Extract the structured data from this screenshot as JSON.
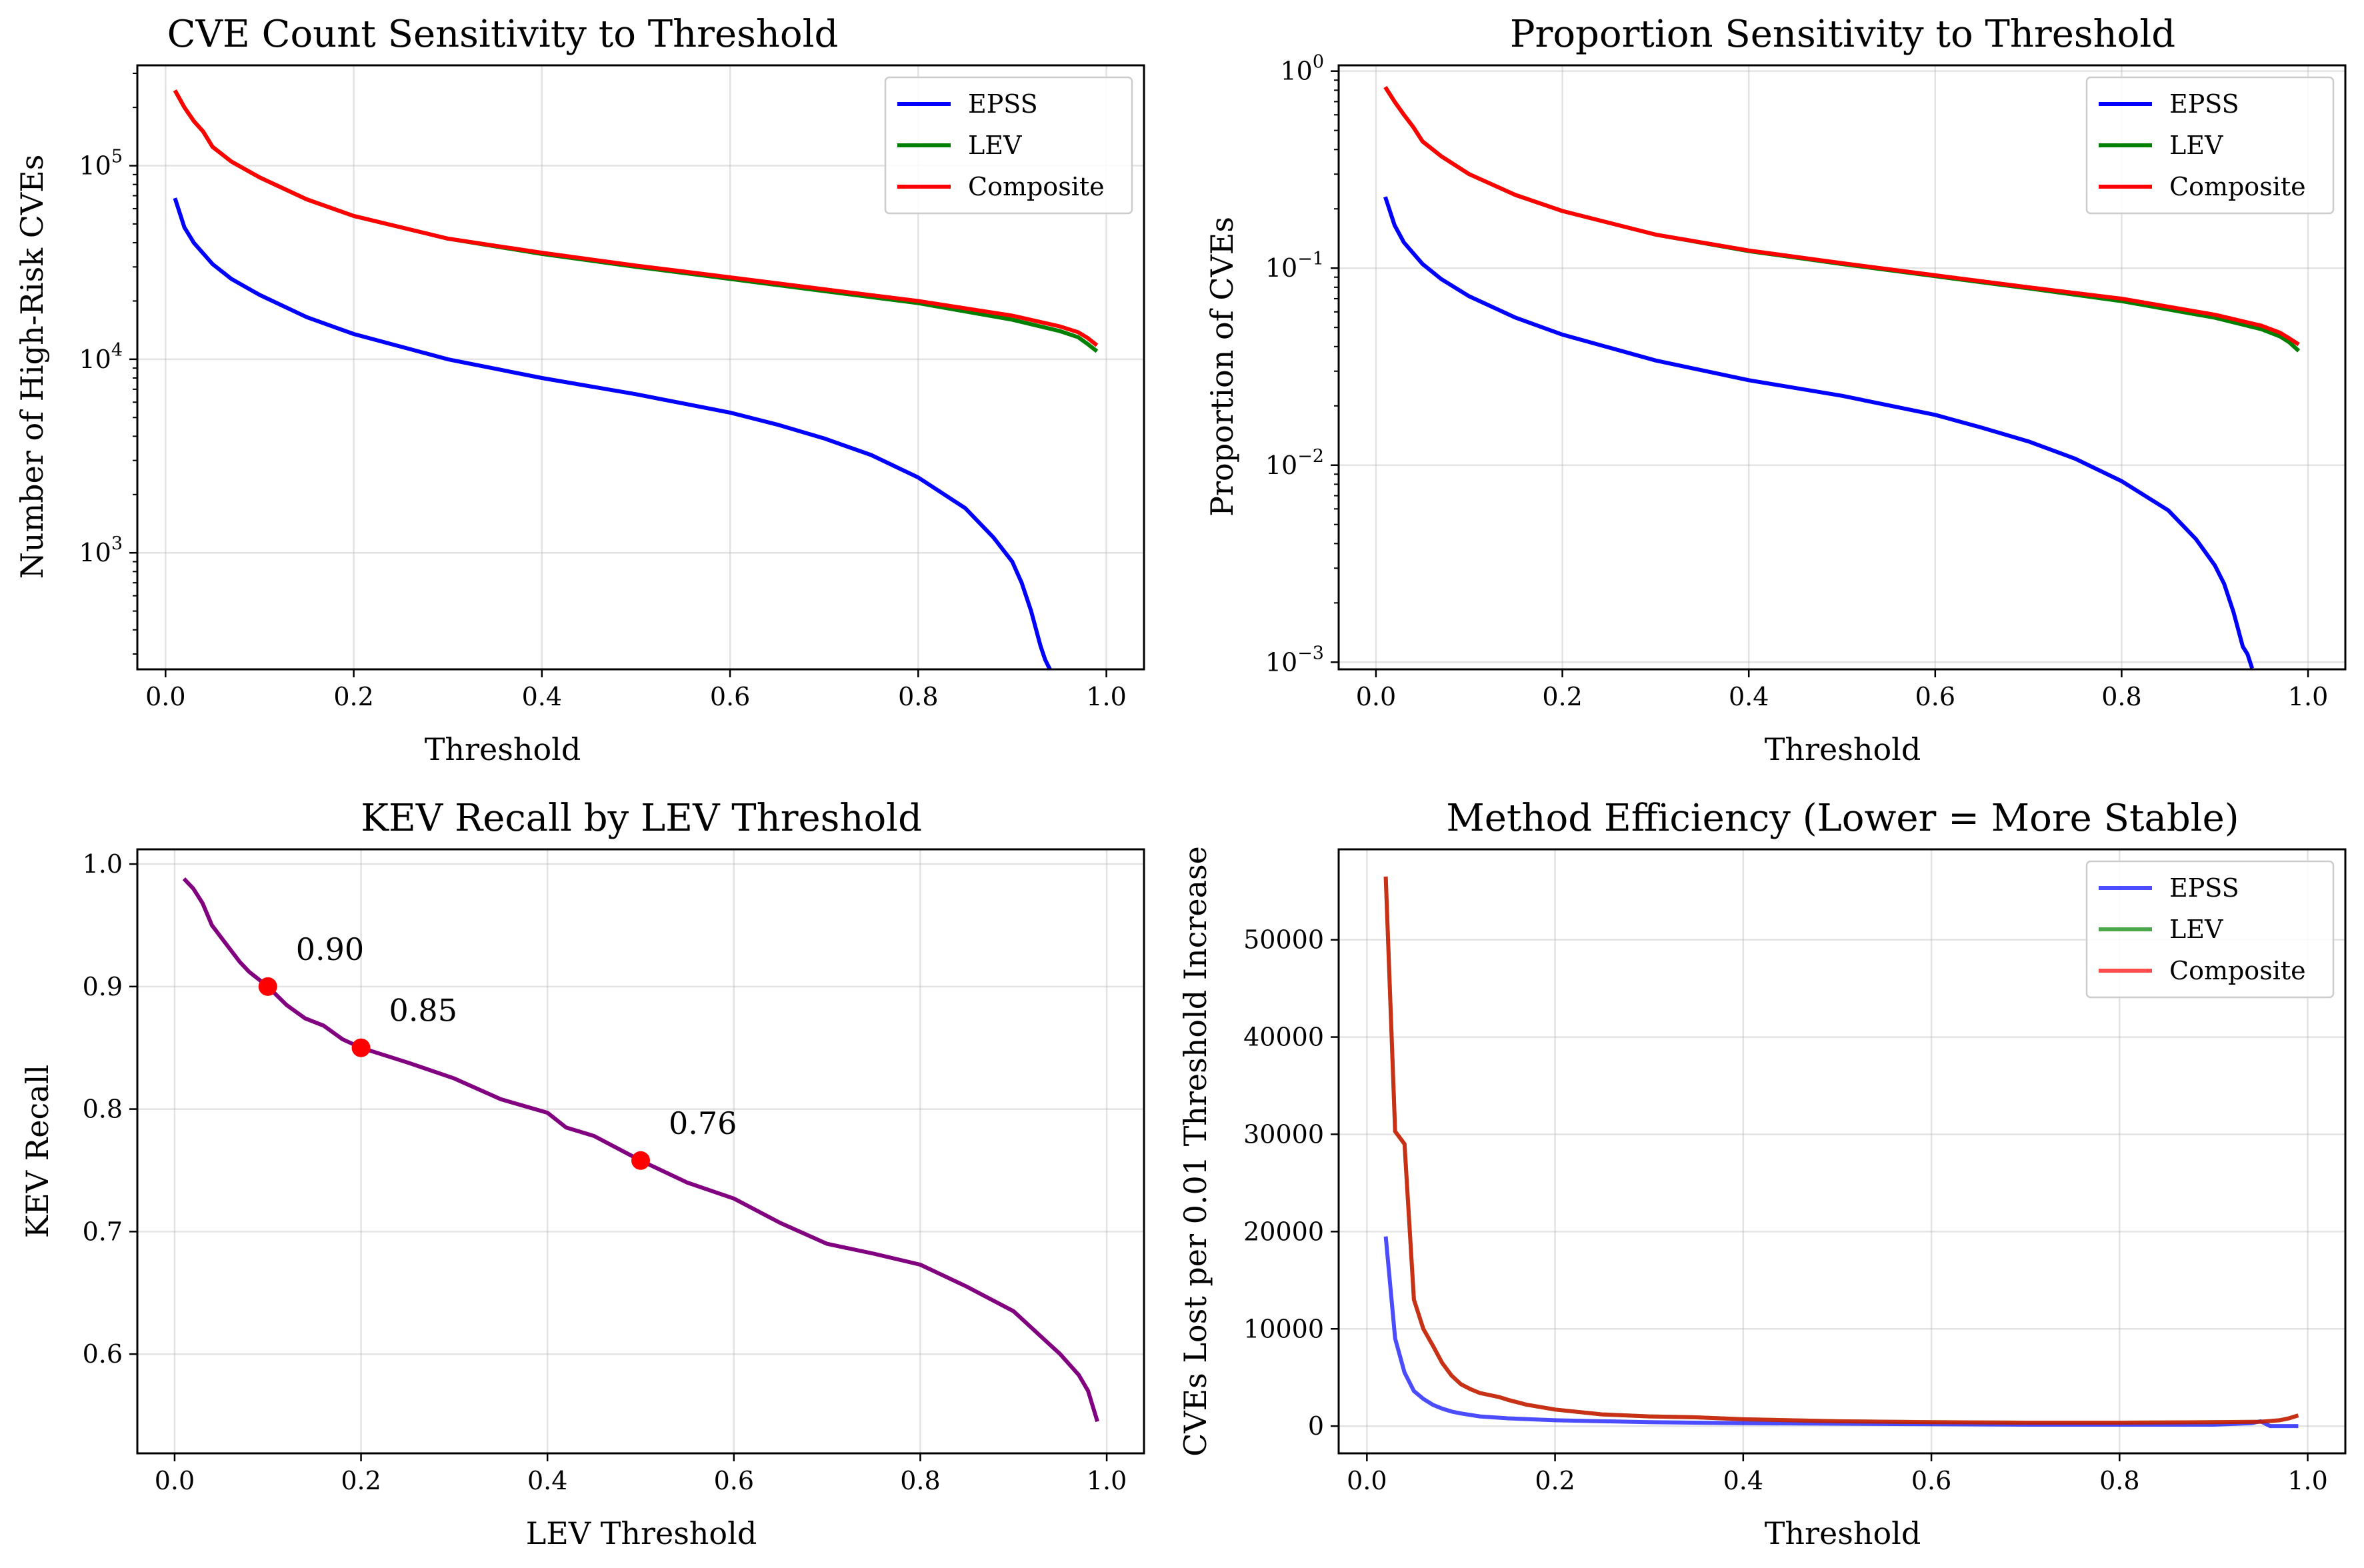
{
  "chart_data": [
    {
      "type": "line",
      "title": "CVE Count Sensitivity to Threshold",
      "xlabel": "Threshold",
      "ylabel": "Number of High-Risk CVEs",
      "yscale": "log",
      "xlim": [
        -0.03,
        1.04
      ],
      "ylim": [
        250,
        330000
      ],
      "x_ticks": [
        0.0,
        0.2,
        0.4,
        0.6,
        0.8,
        1.0
      ],
      "x_tick_labels": [
        "0.0",
        "0.2",
        "0.4",
        "0.6",
        "0.8",
        "1.0"
      ],
      "y_ticks": [
        1000,
        10000,
        100000
      ],
      "y_tick_labels": [
        {
          "base": "10",
          "exp": "3"
        },
        {
          "base": "10",
          "exp": "4"
        },
        {
          "base": "10",
          "exp": "5"
        }
      ],
      "grid": true,
      "legend_position": "top-right",
      "series": [
        {
          "name": "EPSS",
          "color": "#0000ff",
          "opacity": 1,
          "x": [
            0.01,
            0.02,
            0.03,
            0.05,
            0.07,
            0.1,
            0.15,
            0.2,
            0.3,
            0.4,
            0.5,
            0.6,
            0.65,
            0.7,
            0.75,
            0.8,
            0.85,
            0.88,
            0.9,
            0.91,
            0.92,
            0.93,
            0.935,
            0.94,
            0.94
          ],
          "y": [
            68000,
            48000,
            40000,
            31000,
            26000,
            21500,
            16500,
            13500,
            10000,
            8000,
            6600,
            5300,
            4600,
            3900,
            3200,
            2450,
            1700,
            1200,
            900,
            700,
            500,
            330,
            280,
            250,
            250
          ]
        },
        {
          "name": "LEV",
          "color": "#008000",
          "opacity": 1,
          "x": [
            0.01,
            0.02,
            0.03,
            0.04,
            0.05,
            0.07,
            0.1,
            0.15,
            0.2,
            0.3,
            0.4,
            0.5,
            0.6,
            0.7,
            0.8,
            0.9,
            0.95,
            0.97,
            0.98,
            0.99
          ],
          "y": [
            245000,
            200000,
            170000,
            150000,
            125000,
            105000,
            87000,
            67000,
            55000,
            42000,
            35000,
            30000,
            26000,
            22500,
            19500,
            16000,
            14000,
            13000,
            12000,
            11000
          ]
        },
        {
          "name": "Composite",
          "color": "#ff0000",
          "opacity": 1,
          "x": [
            0.01,
            0.02,
            0.03,
            0.04,
            0.05,
            0.07,
            0.1,
            0.15,
            0.2,
            0.3,
            0.4,
            0.5,
            0.6,
            0.7,
            0.8,
            0.9,
            0.95,
            0.97,
            0.98,
            0.99
          ],
          "y": [
            245000,
            200000,
            170000,
            150000,
            125000,
            105000,
            87000,
            67000,
            55000,
            42000,
            35500,
            30500,
            26500,
            23000,
            20000,
            16800,
            14800,
            13800,
            12900,
            11800
          ]
        }
      ]
    },
    {
      "type": "line",
      "title": "Proportion Sensitivity to Threshold",
      "xlabel": "Threshold",
      "ylabel": "Proportion of CVEs",
      "yscale": "log",
      "xlim": [
        -0.04,
        1.04
      ],
      "ylim": [
        0.00092,
        1.07
      ],
      "x_ticks": [
        0.0,
        0.2,
        0.4,
        0.6,
        0.8,
        1.0
      ],
      "x_tick_labels": [
        "0.0",
        "0.2",
        "0.4",
        "0.6",
        "0.8",
        "1.0"
      ],
      "y_ticks": [
        0.001,
        0.01,
        0.1,
        1
      ],
      "y_tick_labels": [
        {
          "base": "10",
          "exp": "−3"
        },
        {
          "base": "10",
          "exp": "−2"
        },
        {
          "base": "10",
          "exp": "−1"
        },
        {
          "base": "10",
          "exp": "0"
        }
      ],
      "grid": true,
      "legend_position": "top-right",
      "series": [
        {
          "name": "EPSS",
          "color": "#0000ff",
          "opacity": 1,
          "x": [
            0.01,
            0.02,
            0.03,
            0.05,
            0.07,
            0.1,
            0.15,
            0.2,
            0.3,
            0.4,
            0.5,
            0.6,
            0.65,
            0.7,
            0.75,
            0.8,
            0.85,
            0.88,
            0.9,
            0.91,
            0.92,
            0.93,
            0.935,
            0.94,
            0.94
          ],
          "y": [
            0.23,
            0.165,
            0.135,
            0.105,
            0.088,
            0.072,
            0.056,
            0.046,
            0.034,
            0.027,
            0.0225,
            0.018,
            0.0155,
            0.0132,
            0.0108,
            0.0083,
            0.0059,
            0.0042,
            0.0031,
            0.0025,
            0.0018,
            0.0012,
            0.0011,
            0.00093,
            0.00093
          ]
        },
        {
          "name": "LEV",
          "color": "#008000",
          "opacity": 1,
          "x": [
            0.01,
            0.02,
            0.03,
            0.04,
            0.05,
            0.07,
            0.1,
            0.15,
            0.2,
            0.3,
            0.4,
            0.5,
            0.6,
            0.7,
            0.8,
            0.9,
            0.95,
            0.97,
            0.98,
            0.99
          ],
          "y": [
            0.83,
            0.7,
            0.6,
            0.52,
            0.44,
            0.37,
            0.3,
            0.235,
            0.195,
            0.148,
            0.122,
            0.105,
            0.091,
            0.079,
            0.068,
            0.056,
            0.049,
            0.045,
            0.042,
            0.038
          ]
        },
        {
          "name": "Composite",
          "color": "#ff0000",
          "opacity": 1,
          "x": [
            0.01,
            0.02,
            0.03,
            0.04,
            0.05,
            0.07,
            0.1,
            0.15,
            0.2,
            0.3,
            0.4,
            0.5,
            0.6,
            0.7,
            0.8,
            0.9,
            0.95,
            0.97,
            0.98,
            0.99
          ],
          "y": [
            0.83,
            0.7,
            0.6,
            0.52,
            0.44,
            0.37,
            0.3,
            0.235,
            0.195,
            0.148,
            0.123,
            0.106,
            0.092,
            0.08,
            0.07,
            0.058,
            0.051,
            0.047,
            0.044,
            0.041
          ]
        }
      ]
    },
    {
      "type": "line",
      "title": "KEV Recall by LEV Threshold",
      "xlabel": "LEV Threshold",
      "ylabel": "KEV Recall",
      "yscale": "linear",
      "xlim": [
        -0.04,
        1.04
      ],
      "ylim": [
        0.519,
        1.012
      ],
      "x_ticks": [
        0.0,
        0.2,
        0.4,
        0.6,
        0.8,
        1.0
      ],
      "x_tick_labels": [
        "0.0",
        "0.2",
        "0.4",
        "0.6",
        "0.8",
        "1.0"
      ],
      "y_ticks": [
        0.6,
        0.7,
        0.8,
        0.9,
        1.0
      ],
      "y_tick_labels": [
        "0.6",
        "0.7",
        "0.8",
        "0.9",
        "1.0"
      ],
      "grid": true,
      "series": [
        {
          "name": "",
          "color": "#800080",
          "opacity": 1,
          "x": [
            0.01,
            0.02,
            0.03,
            0.04,
            0.05,
            0.06,
            0.07,
            0.08,
            0.1,
            0.12,
            0.14,
            0.16,
            0.18,
            0.2,
            0.25,
            0.3,
            0.35,
            0.4,
            0.42,
            0.45,
            0.5,
            0.55,
            0.6,
            0.65,
            0.7,
            0.75,
            0.8,
            0.85,
            0.9,
            0.93,
            0.95,
            0.97,
            0.98,
            0.99
          ],
          "y": [
            0.988,
            0.98,
            0.968,
            0.95,
            0.94,
            0.93,
            0.92,
            0.912,
            0.9,
            0.885,
            0.874,
            0.868,
            0.857,
            0.85,
            0.838,
            0.825,
            0.808,
            0.797,
            0.785,
            0.778,
            0.758,
            0.74,
            0.727,
            0.707,
            0.69,
            0.682,
            0.673,
            0.655,
            0.635,
            0.614,
            0.6,
            0.583,
            0.57,
            0.545
          ]
        }
      ],
      "points": [
        {
          "x": 0.1,
          "y": 0.9,
          "label": "0.90"
        },
        {
          "x": 0.2,
          "y": 0.85,
          "label": "0.85"
        },
        {
          "x": 0.5,
          "y": 0.758,
          "label": "0.76"
        }
      ],
      "point_color": "#ff0000"
    },
    {
      "type": "line",
      "title": "Method Efficiency (Lower = More Stable)",
      "xlabel": "Threshold",
      "ylabel": "CVEs Lost per 0.01 Threshold Increase",
      "yscale": "linear",
      "xlim": [
        -0.03,
        1.04
      ],
      "ylim": [
        -2800,
        59300
      ],
      "x_ticks": [
        0.0,
        0.2,
        0.4,
        0.6,
        0.8,
        1.0
      ],
      "x_tick_labels": [
        "0.0",
        "0.2",
        "0.4",
        "0.6",
        "0.8",
        "1.0"
      ],
      "y_ticks": [
        0,
        10000,
        20000,
        30000,
        40000,
        50000
      ],
      "y_tick_labels": [
        "0",
        "10000",
        "20000",
        "30000",
        "40000",
        "50000"
      ],
      "grid": true,
      "legend_position": "top-right",
      "series": [
        {
          "name": "EPSS",
          "color": "#0000ff",
          "opacity": 0.7,
          "x": [
            0.02,
            0.03,
            0.04,
            0.05,
            0.06,
            0.07,
            0.08,
            0.09,
            0.1,
            0.12,
            0.15,
            0.2,
            0.3,
            0.4,
            0.5,
            0.6,
            0.7,
            0.8,
            0.9,
            0.94,
            0.95,
            0.96,
            0.99
          ],
          "y": [
            19500,
            9000,
            5500,
            3600,
            2800,
            2200,
            1800,
            1500,
            1300,
            1000,
            800,
            600,
            400,
            300,
            250,
            200,
            150,
            150,
            150,
            300,
            500,
            0,
            0
          ]
        },
        {
          "name": "LEV",
          "color": "#008000",
          "opacity": 0.7,
          "x": [
            0.02,
            0.03,
            0.04,
            0.05,
            0.06,
            0.07,
            0.08,
            0.09,
            0.1,
            0.11,
            0.12,
            0.14,
            0.15,
            0.17,
            0.2,
            0.25,
            0.3,
            0.35,
            0.4,
            0.5,
            0.6,
            0.7,
            0.8,
            0.9,
            0.95,
            0.97,
            0.98,
            0.99
          ],
          "y": [
            56500,
            30300,
            29000,
            13000,
            10000,
            8300,
            6500,
            5200,
            4300,
            3800,
            3400,
            3000,
            2700,
            2200,
            1700,
            1200,
            1000,
            900,
            700,
            500,
            400,
            350,
            350,
            400,
            450,
            600,
            800,
            1100
          ]
        },
        {
          "name": "Composite",
          "color": "#ff0000",
          "opacity": 0.7,
          "x": [
            0.02,
            0.03,
            0.04,
            0.05,
            0.06,
            0.07,
            0.08,
            0.09,
            0.1,
            0.11,
            0.12,
            0.14,
            0.15,
            0.17,
            0.2,
            0.25,
            0.3,
            0.35,
            0.4,
            0.5,
            0.6,
            0.7,
            0.8,
            0.9,
            0.95,
            0.97,
            0.98,
            0.99
          ],
          "y": [
            56500,
            30300,
            29000,
            13000,
            10000,
            8300,
            6500,
            5200,
            4300,
            3800,
            3400,
            3000,
            2700,
            2200,
            1700,
            1200,
            1000,
            900,
            700,
            500,
            400,
            350,
            350,
            400,
            450,
            600,
            800,
            1100
          ]
        }
      ]
    }
  ]
}
